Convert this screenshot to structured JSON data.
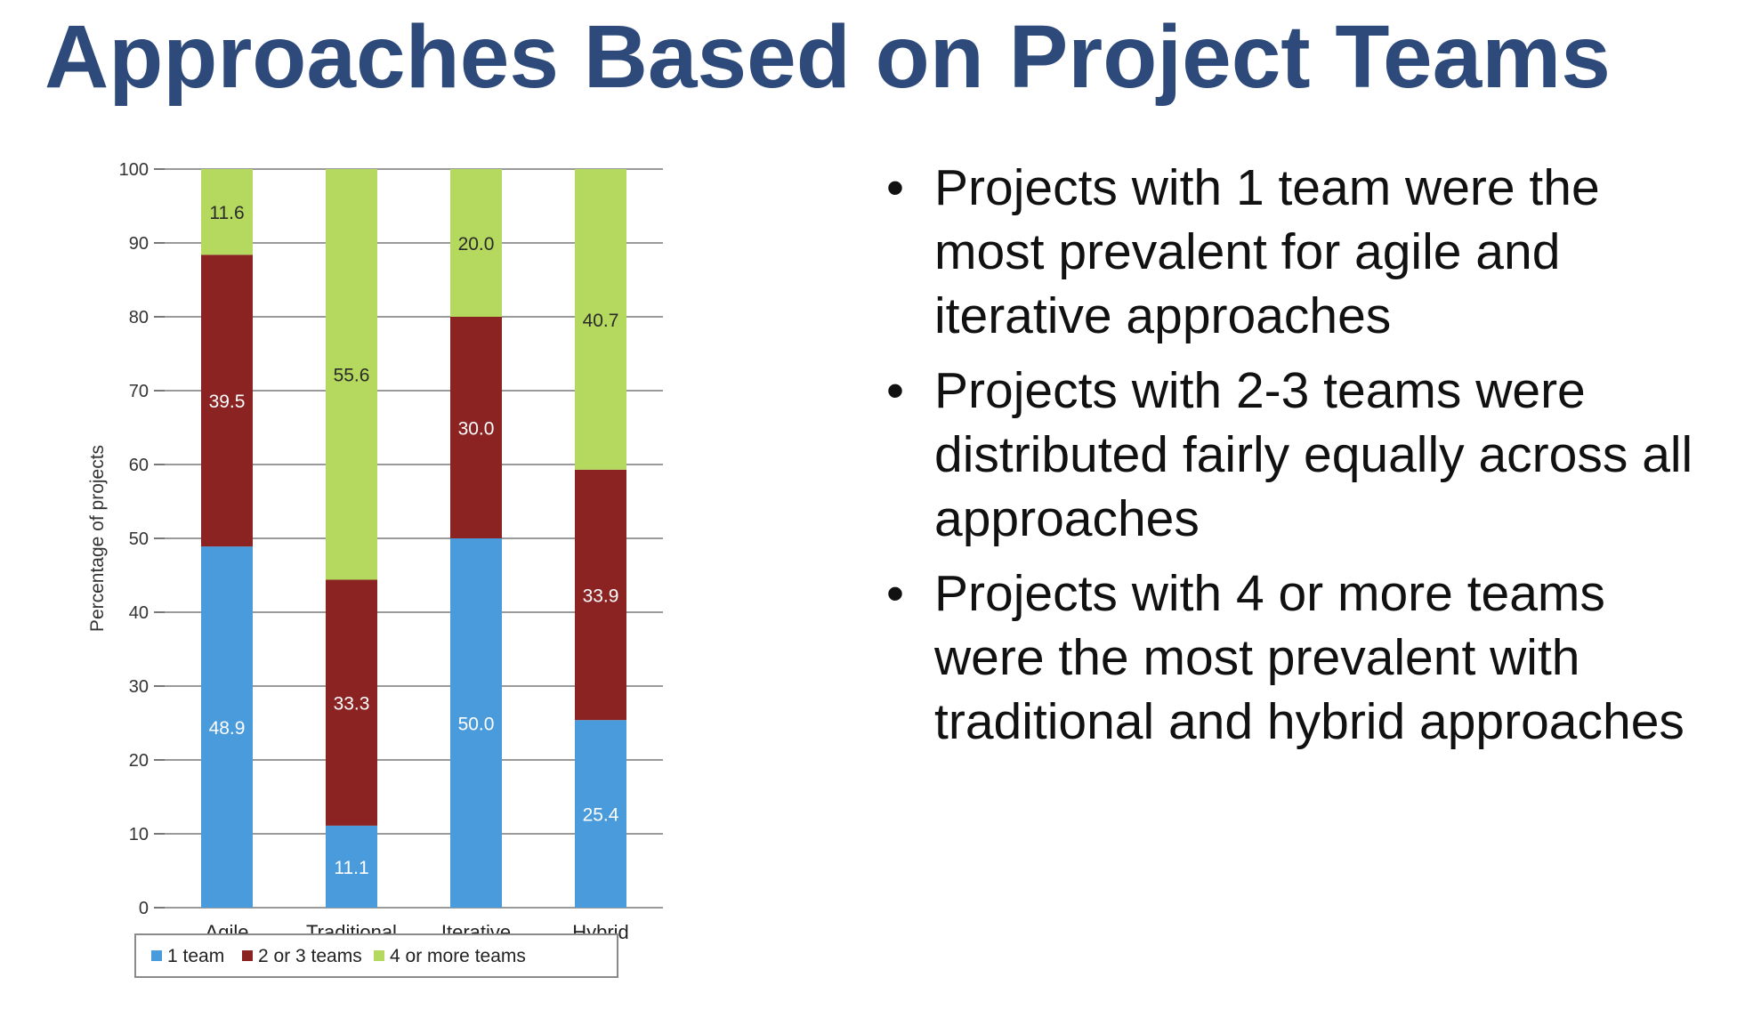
{
  "title": "Approaches Based on Project Teams",
  "bullets": [
    "Projects with 1 team were the most prevalent for agile and iterative approaches",
    "Projects with 2-3 teams were distributed fairly equally across all approaches",
    "Projects with 4 or more teams were the most prevalent with traditional and hybrid approaches"
  ],
  "chart_data": {
    "type": "bar",
    "stacked": true,
    "categories": [
      "Agile",
      "Traditional",
      "Iterative",
      "Hybrid"
    ],
    "series": [
      {
        "name": "1 team",
        "values": [
          48.9,
          11.1,
          50.0,
          25.4
        ],
        "color": "#4a9bdc",
        "label_color": "#ffffff"
      },
      {
        "name": "2 or 3 teams",
        "values": [
          39.5,
          33.3,
          30.0,
          33.9
        ],
        "color": "#8b2323",
        "label_color": "#ffffff"
      },
      {
        "name": "4 or more teams",
        "values": [
          11.6,
          55.6,
          20.0,
          40.7
        ],
        "color": "#b5d95e",
        "label_color": "#2a2a2a"
      }
    ],
    "title": "",
    "xlabel": "",
    "ylabel": "Percentage of projects",
    "ylim": [
      0,
      100
    ],
    "yticks": [
      0,
      10,
      20,
      30,
      40,
      50,
      60,
      70,
      80,
      90,
      100
    ],
    "grid": true,
    "legend_position": "bottom"
  }
}
